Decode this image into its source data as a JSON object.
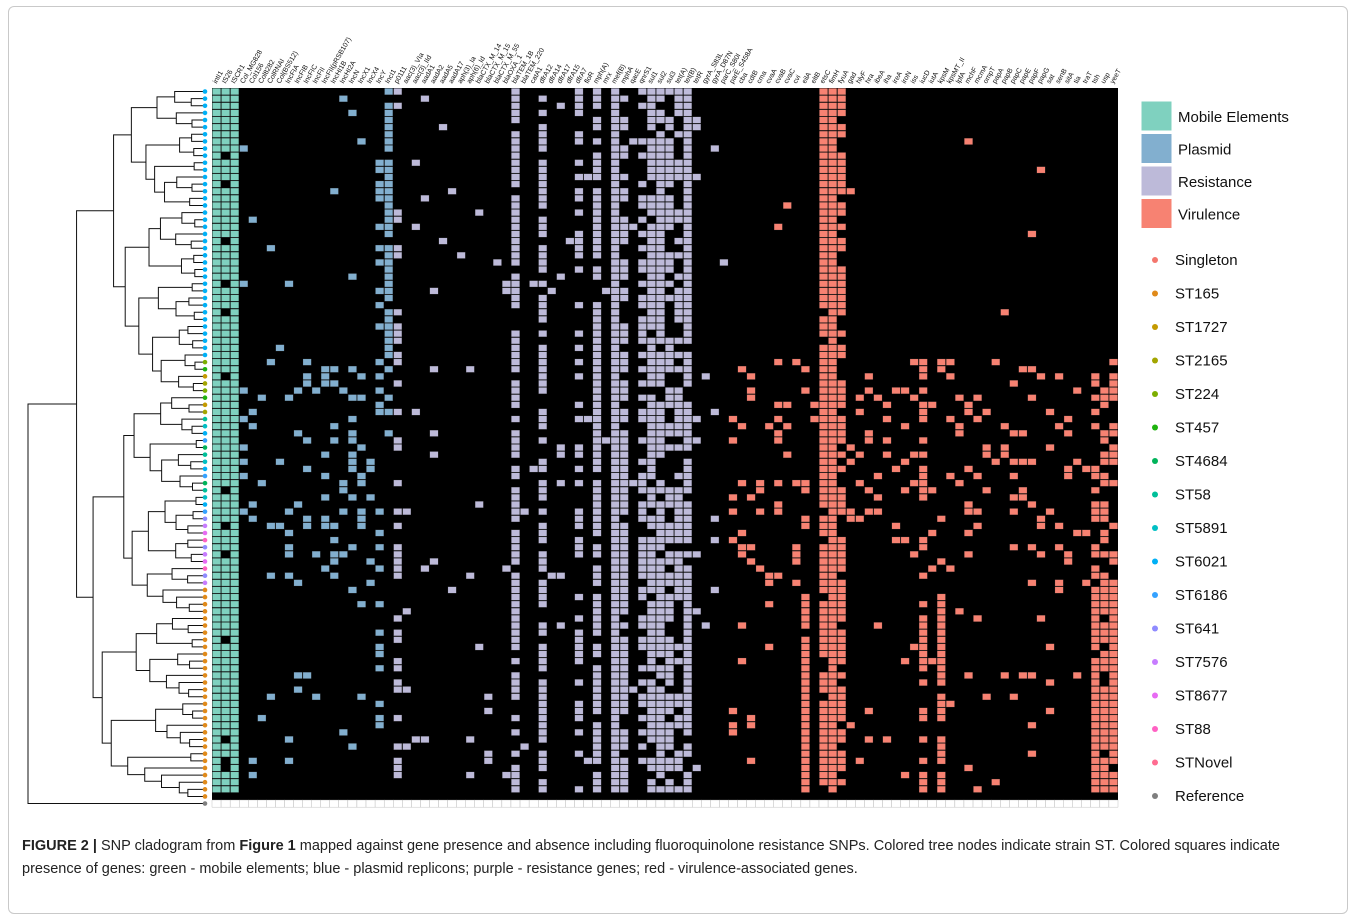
{
  "figure": {
    "caption_label": "FIGURE 2 |",
    "caption_text_1": " SNP cladogram from ",
    "caption_ref": "Figure 1",
    "caption_text_2": " mapped against gene presence and absence including fluoroquinolone resistance SNPs. Colored tree nodes indicate strain ST. Colored squares indicate presence of genes: green - mobile elements; blue - plasmid replicons; purple - resistance genes; red - virulence-associated genes."
  },
  "columns": {
    "names": [
      "intI1",
      "IS26",
      "ISCR1",
      "Col_MG828",
      "Col156",
      "Col8282",
      "ColRNAI",
      "Col(BS512)",
      "IncFIA",
      "IncFIB",
      "IncFIC",
      "IncFII",
      "IncFII(pRSB107)",
      "IncHI1B",
      "IncHI2A",
      "IncN",
      "IncX1",
      "IncX4",
      "IncY",
      "IncI1",
      "p0111",
      "aac(3)_VIa",
      "aac(3)_IId",
      "aadA1",
      "aadA2",
      "aadA5",
      "aadA17",
      "aph(3)_Ia",
      "aph(6)_Id",
      "blaCTX_M_14",
      "blaCTX_M_15",
      "blaCTX_M_55",
      "blaOXA_1",
      "blaTEM_1B",
      "blaTEM_220",
      "catA1",
      "dfrA12",
      "dfrA14",
      "dfrA17",
      "dfrA15",
      "dfrA7",
      "floR",
      "mph(A)",
      "mrx",
      "mef(B)",
      "mphA",
      "qacE",
      "qnrS1",
      "sul1",
      "sul2",
      "sul3",
      "tet(A)",
      "tet(B)",
      "tetR",
      "gyrA_S83L",
      "gyrA_D87N",
      "parC_S80I",
      "parE_S458A",
      "cba",
      "cdtB",
      "cma",
      "cvaA",
      "cvaB",
      "cvaC",
      "cvi",
      "eilA",
      "eltB",
      "etsC",
      "fimH",
      "fyuA",
      "gad",
      "hlyF",
      "hra",
      "ibeA",
      "iha",
      "ireA",
      "iroN",
      "iss",
      "iucD",
      "iutA",
      "kpsM",
      "kpsMT_II",
      "lpfA",
      "mchF",
      "mcmA",
      "ompT",
      "papA",
      "papB",
      "papC",
      "papE",
      "papF",
      "papG",
      "sat",
      "senB",
      "sitA",
      "tia",
      "traT",
      "tsh",
      "usp",
      "yeeT"
    ],
    "categories": [
      "Mobile Elements",
      "Plasmid",
      "Resistance",
      "Virulence"
    ]
  },
  "legend": {
    "categories": [
      {
        "label": "Mobile Elements",
        "color": "#7fd1bf"
      },
      {
        "label": "Plasmid",
        "color": "#82afcf"
      },
      {
        "label": "Resistance",
        "color": "#bdbad9"
      },
      {
        "label": "Virulence",
        "color": "#f78272"
      }
    ],
    "sts": [
      {
        "label": "Singleton",
        "color": "#f4766d"
      },
      {
        "label": "ST165",
        "color": "#e08a1a"
      },
      {
        "label": "ST1727",
        "color": "#c49a00"
      },
      {
        "label": "ST2165",
        "color": "#a3a500"
      },
      {
        "label": "ST224",
        "color": "#7cae00"
      },
      {
        "label": "ST457",
        "color": "#1fb30f"
      },
      {
        "label": "ST4684",
        "color": "#00b35a"
      },
      {
        "label": "ST58",
        "color": "#00bf99"
      },
      {
        "label": "ST5891",
        "color": "#00bfc4"
      },
      {
        "label": "ST6021",
        "color": "#00b0f6"
      },
      {
        "label": "ST6186",
        "color": "#35a2ff"
      },
      {
        "label": "ST641",
        "color": "#8f8bff"
      },
      {
        "label": "ST7576",
        "color": "#c77cff"
      },
      {
        "label": "ST8677",
        "color": "#e76bf3"
      },
      {
        "label": "ST88",
        "color": "#ff61c3"
      },
      {
        "label": "STNovel",
        "color": "#ff6c91"
      },
      {
        "label": "Reference",
        "color": "#7f7f7f"
      }
    ]
  },
  "colors": {
    "background_grid": "#000000",
    "cell_border": "#2f4f4f"
  }
}
